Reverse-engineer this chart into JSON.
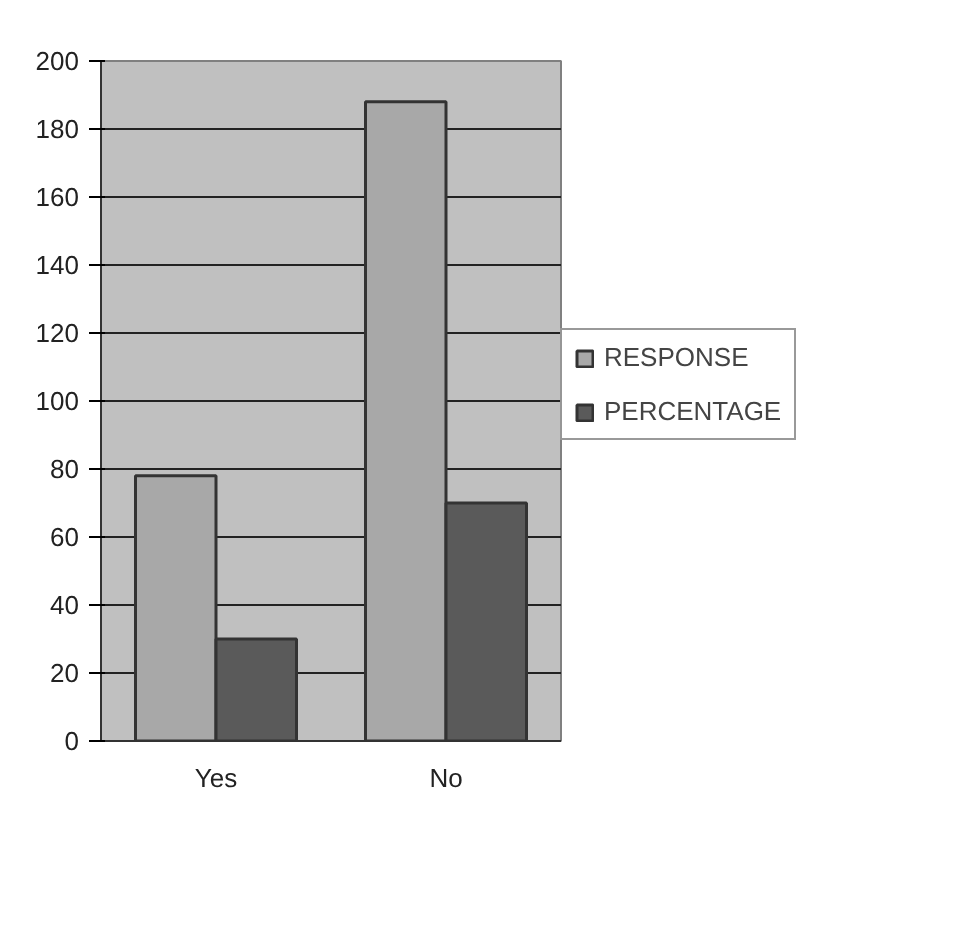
{
  "chart_data": {
    "type": "bar",
    "categories": [
      "Yes",
      "No"
    ],
    "series": [
      {
        "name": "RESPONSE",
        "color": "#a8a8a8",
        "values": [
          78,
          188
        ]
      },
      {
        "name": "PERCENTAGE",
        "color": "#5a5a5a",
        "values": [
          30,
          70
        ]
      }
    ],
    "ylim": [
      0,
      200
    ],
    "yticks": [
      0,
      20,
      40,
      60,
      80,
      100,
      120,
      140,
      160,
      180,
      200
    ],
    "grid": "y",
    "legend": "right"
  }
}
